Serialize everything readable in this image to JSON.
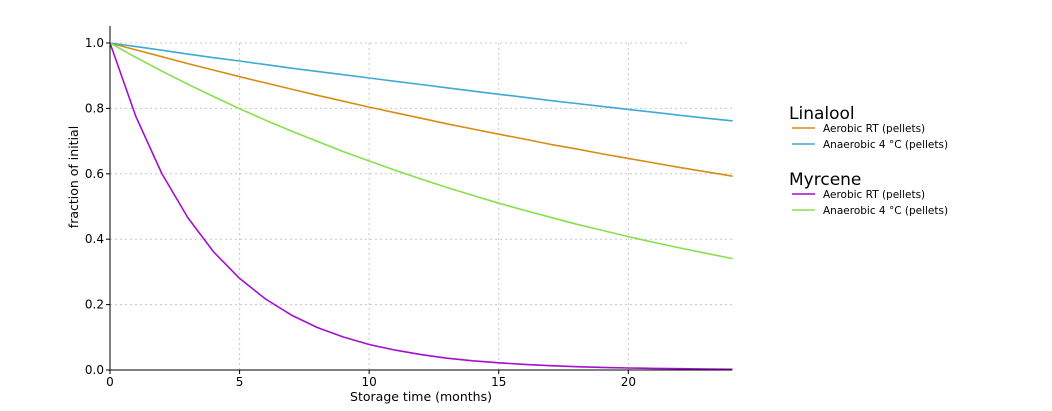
{
  "chart_data": {
    "type": "line",
    "title": "",
    "xlabel": "Storage time (months)",
    "ylabel": "fraction of initial",
    "xlim": [
      0,
      24
    ],
    "ylim": [
      0,
      1.05
    ],
    "xticks": [
      0,
      5,
      10,
      15,
      20
    ],
    "yticks": [
      0.0,
      0.2,
      0.4,
      0.6,
      0.8,
      1.0
    ],
    "xtick_labels": [
      "0",
      "5",
      "10",
      "15",
      "20"
    ],
    "ytick_labels": [
      "0.0",
      "0.2",
      "0.4",
      "0.6",
      "0.8",
      "1.0"
    ],
    "grid": true,
    "legend_position": "right",
    "legend_groups": [
      {
        "title": "Linalool",
        "series": [
          0,
          1
        ]
      },
      {
        "title": "Myrcene",
        "series": [
          2,
          3
        ]
      }
    ],
    "x": [
      0,
      1,
      2,
      3,
      4,
      5,
      6,
      7,
      8,
      9,
      10,
      11,
      12,
      13,
      14,
      15,
      16,
      17,
      18,
      19,
      20,
      21,
      22,
      23,
      24
    ],
    "series": [
      {
        "name": "Aerobic RT (pellets)",
        "color": "#d98c14",
        "values": [
          1.0,
          0.979,
          0.958,
          0.937,
          0.917,
          0.897,
          0.878,
          0.859,
          0.84,
          0.822,
          0.804,
          0.787,
          0.77,
          0.753,
          0.737,
          0.721,
          0.706,
          0.69,
          0.676,
          0.661,
          0.647,
          0.633,
          0.619,
          0.606,
          0.593
        ]
      },
      {
        "name": "Anaerobic 4 °C (pellets)",
        "color": "#3ea9d6",
        "values": [
          1.0,
          0.989,
          0.978,
          0.966,
          0.955,
          0.945,
          0.934,
          0.923,
          0.913,
          0.903,
          0.893,
          0.883,
          0.873,
          0.863,
          0.853,
          0.843,
          0.834,
          0.824,
          0.815,
          0.806,
          0.797,
          0.788,
          0.779,
          0.77,
          0.762
        ]
      },
      {
        "name": "Aerobic RT (pellets)",
        "color": "#a30fcf",
        "values": [
          1.0,
          0.775,
          0.601,
          0.466,
          0.361,
          0.28,
          0.217,
          0.168,
          0.13,
          0.101,
          0.078,
          0.061,
          0.047,
          0.036,
          0.028,
          0.022,
          0.017,
          0.013,
          0.01,
          0.008,
          0.006,
          0.005,
          0.004,
          0.003,
          0.002
        ]
      },
      {
        "name": "Anaerobic 4 °C (pellets)",
        "color": "#86e04a",
        "values": [
          1.0,
          0.956,
          0.914,
          0.874,
          0.836,
          0.799,
          0.764,
          0.731,
          0.699,
          0.668,
          0.639,
          0.611,
          0.584,
          0.558,
          0.534,
          0.51,
          0.488,
          0.467,
          0.446,
          0.427,
          0.408,
          0.39,
          0.373,
          0.357,
          0.341
        ]
      }
    ]
  }
}
